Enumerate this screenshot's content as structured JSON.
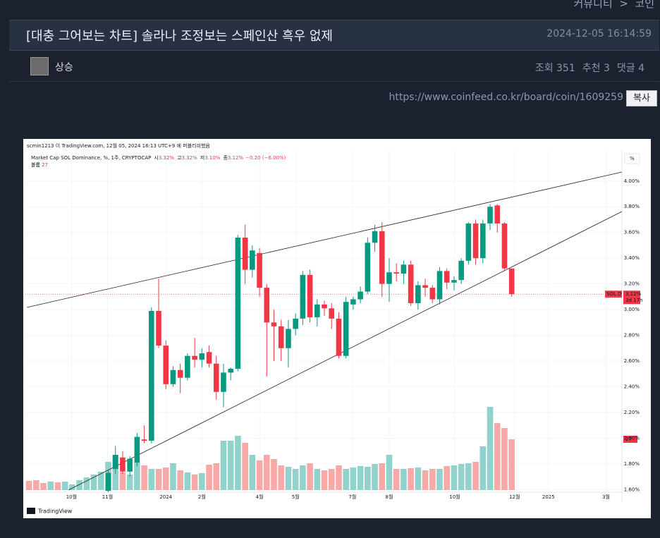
{
  "breadcrumb": [
    "커뮤니티",
    ">",
    "코인"
  ],
  "post": {
    "title": "[대충 그어보는 차트] 솔라나 조정보는 스페인산 흑우 없제",
    "date": "2024-12-05 16:14:59",
    "author": "상승",
    "stats": [
      "조회 351",
      "추천 3",
      "댓글 4"
    ],
    "url": "https://www.coinfeed.co.kr/board/coin/1609259",
    "copy_button": "복사"
  },
  "chart_data": {
    "type": "candlestick",
    "published_note": "scmin1213 이 TradingView.com, 12월 05, 2024 16:13 UTC+9 에 퍼블리쉬했음",
    "title": "Market Cap SOL Dominance, %, 1주, CRYPTOCAP",
    "legend": [
      {
        "label": "시",
        "value": "3.32%"
      },
      {
        "label": "고",
        "value": "3.32%"
      },
      {
        "label": "저",
        "value": "3.10%"
      },
      {
        "label": "종",
        "value": "3.12%"
      }
    ],
    "change": "−0.20 (−6.00%)",
    "volume_label": "볼륨",
    "volume_value_label": "27",
    "unit_button": "%",
    "logo": "TradingView",
    "symbol_label": "SOL.D",
    "last": 3.12,
    "last_label": "3.12%",
    "countdown": "3d 17h",
    "up_color": "#089981",
    "down_color": "#f23645",
    "volume_up_color": "#92d2cc",
    "volume_down_color": "#f7a9a7",
    "grid": true,
    "ylim": [
      1.58,
      4.24
    ],
    "yticks": [
      {
        "value": 4.0,
        "label": "4.00%"
      },
      {
        "value": 3.8,
        "label": "3.80%"
      },
      {
        "value": 3.6,
        "label": "3.60%"
      },
      {
        "value": 3.4,
        "label": "3.40%"
      },
      {
        "value": 3.2,
        "label": "3.20%"
      },
      {
        "value": 3.0,
        "label": "3.00%"
      },
      {
        "value": 2.8,
        "label": "2.80%"
      },
      {
        "value": 2.6,
        "label": "2.60%"
      },
      {
        "value": 2.4,
        "label": "2.40%"
      },
      {
        "value": 2.2,
        "label": "2.20%"
      },
      {
        "value": 2.0,
        "label": "2.00%"
      },
      {
        "value": 1.8,
        "label": "1.80%"
      },
      {
        "value": 1.6,
        "label": "1.60%"
      }
    ],
    "xlim": [
      -0.5,
      82.3
    ],
    "xticks": [
      {
        "value": 5.9,
        "label": "10월"
      },
      {
        "value": 10.9,
        "label": "11월"
      },
      {
        "value": 19.0,
        "label": "2024"
      },
      {
        "value": 24.0,
        "label": "2월"
      },
      {
        "value": 32.0,
        "label": "4월"
      },
      {
        "value": 37.0,
        "label": "5월"
      },
      {
        "value": 44.9,
        "label": "7월"
      },
      {
        "value": 50.0,
        "label": "8월"
      },
      {
        "value": 59.1,
        "label": "10월"
      },
      {
        "value": 67.4,
        "label": "12월"
      },
      {
        "value": 72.1,
        "label": "2025"
      },
      {
        "value": 80.1,
        "label": "3월"
      }
    ],
    "open": [
      null,
      null,
      null,
      null,
      null,
      null,
      null,
      null,
      null,
      null,
      null,
      1.59,
      1.76,
      1.85,
      1.74,
      1.81,
      1.99,
      1.98,
      2.99,
      2.72,
      2.42,
      2.53,
      2.47,
      2.64,
      2.61,
      2.67,
      2.58,
      2.36,
      2.51,
      2.54,
      3.56,
      3.31,
      3.44,
      3.17,
      2.9,
      2.87,
      2.7,
      2.85,
      2.93,
      3.27,
      2.94,
      3.04,
      3.01,
      2.93,
      2.64,
      3.04,
      3.08,
      3.14,
      3.52,
      3.61,
      3.2,
      3.29,
      3.28,
      3.35,
      3.05,
      3.19,
      3.17,
      3.08,
      3.3,
      3.21,
      3.23,
      3.38,
      3.67,
      3.4,
      3.67,
      3.81,
      3.67,
      3.32
    ],
    "high": [
      null,
      null,
      null,
      null,
      null,
      null,
      null,
      null,
      null,
      null,
      null,
      1.75,
      1.94,
      1.9,
      1.86,
      2.04,
      2.1,
      3.02,
      3.24,
      2.76,
      2.56,
      2.58,
      2.66,
      2.78,
      2.7,
      2.72,
      2.64,
      2.58,
      2.55,
      3.58,
      3.66,
      3.5,
      3.48,
      3.2,
      3.0,
      2.92,
      2.92,
      2.97,
      3.3,
      3.31,
      3.08,
      3.07,
      3.05,
      2.98,
      3.1,
      3.1,
      3.18,
      3.56,
      3.66,
      3.68,
      3.4,
      3.36,
      3.38,
      3.38,
      3.22,
      3.24,
      3.19,
      3.33,
      3.32,
      3.26,
      3.4,
      3.68,
      3.7,
      3.7,
      3.82,
      3.82,
      3.68,
      3.32
    ],
    "low": [
      null,
      null,
      null,
      null,
      null,
      null,
      null,
      null,
      null,
      null,
      null,
      1.58,
      1.72,
      1.72,
      1.7,
      1.78,
      1.96,
      1.96,
      2.7,
      2.38,
      2.4,
      2.35,
      2.45,
      2.55,
      2.55,
      2.55,
      2.3,
      2.24,
      2.45,
      2.52,
      3.2,
      3.25,
      3.1,
      2.48,
      2.6,
      2.6,
      2.55,
      2.8,
      2.88,
      2.9,
      2.87,
      2.95,
      2.85,
      2.62,
      2.62,
      3.0,
      3.05,
      3.12,
      3.45,
      3.1,
      3.06,
      3.22,
      3.2,
      3.03,
      3.0,
      3.1,
      3.05,
      3.04,
      3.16,
      3.15,
      3.2,
      3.35,
      3.35,
      3.36,
      3.62,
      3.6,
      3.3,
      3.1
    ],
    "close": [
      null,
      null,
      null,
      null,
      null,
      null,
      null,
      null,
      null,
      null,
      null,
      1.73,
      1.87,
      1.74,
      1.84,
      2.01,
      1.98,
      2.99,
      2.72,
      2.42,
      2.53,
      2.47,
      2.64,
      2.61,
      2.66,
      2.58,
      2.36,
      2.51,
      2.54,
      3.56,
      3.31,
      3.46,
      3.17,
      2.9,
      2.87,
      2.7,
      2.85,
      2.93,
      3.27,
      2.94,
      3.04,
      3.01,
      2.93,
      2.64,
      3.06,
      3.08,
      3.14,
      3.52,
      3.61,
      3.2,
      3.29,
      3.28,
      3.35,
      3.05,
      3.19,
      3.17,
      3.08,
      3.3,
      3.21,
      3.23,
      3.38,
      3.67,
      3.4,
      3.67,
      3.8,
      3.67,
      3.32,
      3.12
    ],
    "volume": [
      13,
      14,
      10,
      12,
      11,
      12,
      8,
      14,
      18,
      22,
      26,
      40,
      50,
      25,
      22,
      40,
      35,
      30,
      30,
      32,
      38,
      28,
      25,
      22,
      24,
      36,
      38,
      70,
      70,
      77,
      67,
      50,
      42,
      50,
      44,
      35,
      33,
      30,
      35,
      38,
      30,
      28,
      30,
      35,
      30,
      32,
      34,
      33,
      37,
      38,
      50,
      30,
      30,
      31,
      32,
      28,
      30,
      30,
      34,
      35,
      37,
      38,
      40,
      62,
      118,
      95,
      88,
      72
    ],
    "volume_direction": [
      "down",
      "down",
      "down",
      "up",
      "down",
      "up",
      "up",
      "up",
      "up",
      "up",
      "up"
    ]
  }
}
